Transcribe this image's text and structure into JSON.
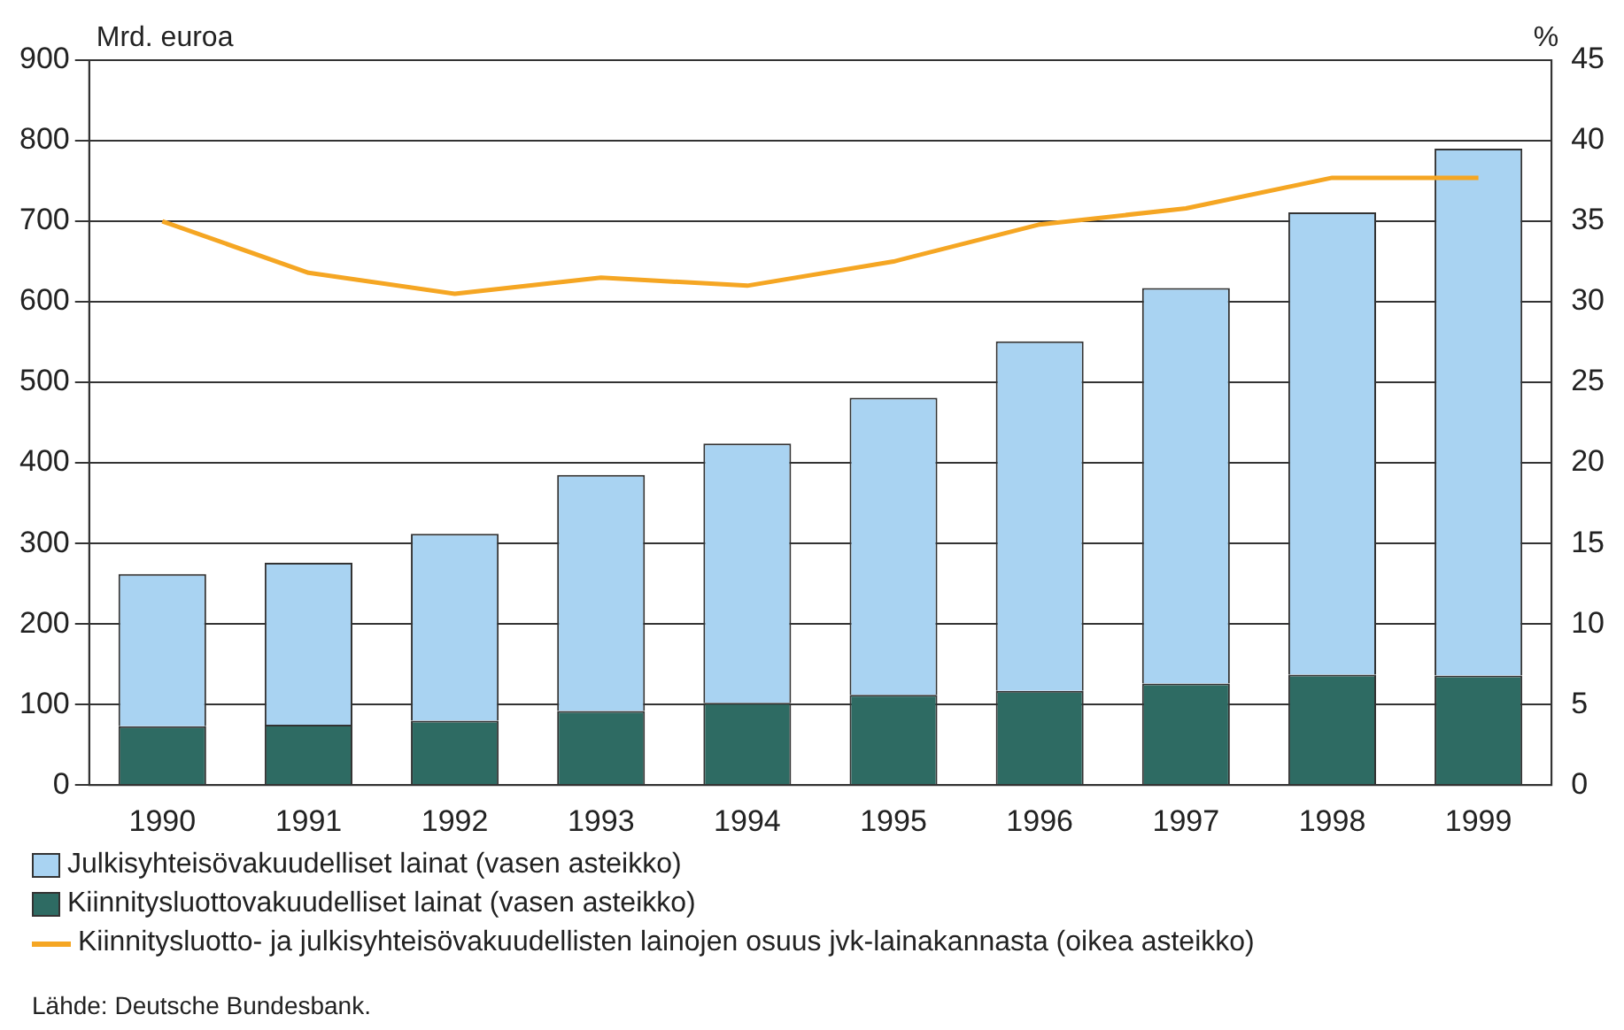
{
  "chart_data": {
    "type": "bar",
    "stacked": true,
    "ylabel": "Mrd. euroa",
    "y2label": "%",
    "categories": [
      "1990",
      "1991",
      "1992",
      "1993",
      "1994",
      "1995",
      "1996",
      "1997",
      "1998",
      "1999"
    ],
    "series": [
      {
        "name": "Kiinnitysluottovakuudelliset lainat (vasen asteikko)",
        "color": "#2e6b63",
        "values": [
          73,
          75,
          80,
          92,
          102,
          112,
          117,
          126,
          137,
          136
        ]
      },
      {
        "name": "Julkisyhteisövakuudelliset lainat (vasen asteikko)",
        "color": "#a9d3f2",
        "values": [
          189,
          201,
          232,
          293,
          322,
          369,
          434,
          491,
          574,
          654
        ]
      },
      {
        "name": "Kiinnitysluotto- ja julkisyhteisövakuudellisten lainojen osuus jvk-lainakannasta (oikea asteikko)",
        "type": "line",
        "axis": "y2",
        "color": "#f5a623",
        "values": [
          35,
          31.8,
          30.5,
          31.5,
          31,
          32.5,
          34.8,
          35.8,
          37.7,
          37.7
        ]
      }
    ],
    "ylim": [
      0,
      900
    ],
    "yticks": [
      0,
      100,
      200,
      300,
      400,
      500,
      600,
      700,
      800,
      900
    ],
    "y2lim": [
      0,
      45
    ],
    "y2ticks": [
      0,
      5,
      10,
      15,
      20,
      25,
      30,
      35,
      40,
      45
    ],
    "grid": "y",
    "legend": "bottom",
    "marker": "none",
    "line_style": "solid",
    "annotations": [
      "Lähde: Deutsche Bundesbank."
    ]
  }
}
